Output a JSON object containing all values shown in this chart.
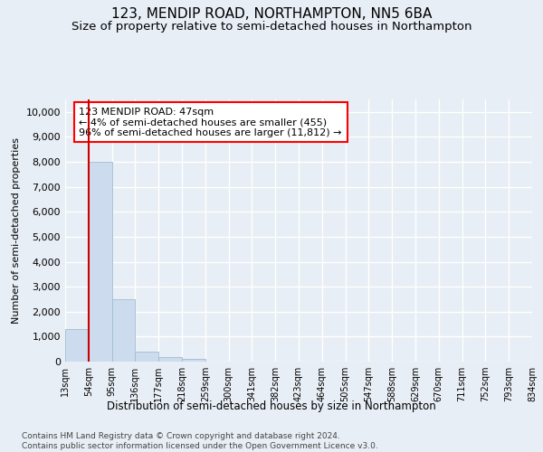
{
  "title": "123, MENDIP ROAD, NORTHAMPTON, NN5 6BA",
  "subtitle": "Size of property relative to semi-detached houses in Northampton",
  "xlabel_bottom": "Distribution of semi-detached houses by size in Northampton",
  "ylabel": "Number of semi-detached properties",
  "footnote": "Contains HM Land Registry data © Crown copyright and database right 2024.\nContains public sector information licensed under the Open Government Licence v3.0.",
  "bar_color": "#ccdcee",
  "bar_edge_color": "#a0bcd0",
  "annotation_text": "123 MENDIP ROAD: 47sqm\n← 4% of semi-detached houses are smaller (455)\n96% of semi-detached houses are larger (11,812) →",
  "annotation_box_facecolor": "white",
  "annotation_box_edgecolor": "red",
  "red_line_color": "#cc0000",
  "bin_labels": [
    "13sqm",
    "54sqm",
    "95sqm",
    "136sqm",
    "177sqm",
    "218sqm",
    "259sqm",
    "300sqm",
    "341sqm",
    "382sqm",
    "423sqm",
    "464sqm",
    "505sqm",
    "547sqm",
    "588sqm",
    "629sqm",
    "670sqm",
    "711sqm",
    "752sqm",
    "793sqm",
    "834sqm"
  ],
  "bar_heights": [
    1300,
    8000,
    2500,
    400,
    175,
    100,
    0,
    0,
    0,
    0,
    0,
    0,
    0,
    0,
    0,
    0,
    0,
    0,
    0,
    0
  ],
  "red_line_x": 0.5,
  "ylim": [
    0,
    10500
  ],
  "yticks": [
    0,
    1000,
    2000,
    3000,
    4000,
    5000,
    6000,
    7000,
    8000,
    9000,
    10000
  ],
  "background_color": "#e8eef5",
  "grid_color": "#ffffff",
  "title_fontsize": 11,
  "subtitle_fontsize": 9.5,
  "footnote_fontsize": 6.5
}
